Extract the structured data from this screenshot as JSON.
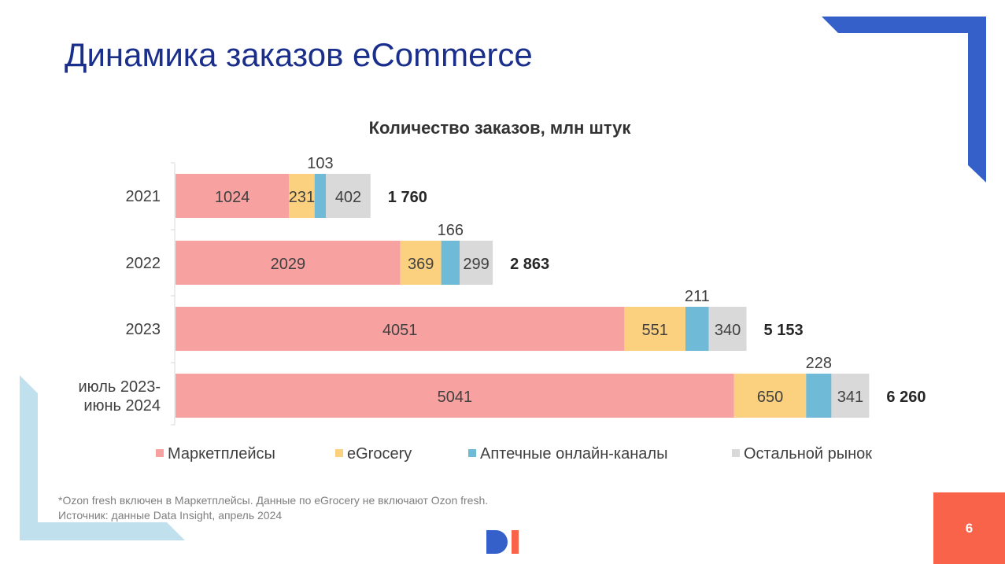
{
  "slide": {
    "title": "Динамика заказов eCommerce",
    "page_number": "6",
    "footnote_line1": "*Ozon fresh включен в Маркетплейсы. Данные по eGrocery не включают Ozon fresh.",
    "footnote_line2": "Источник: данные Data Insight, апрель 2024",
    "logo_text": "DI"
  },
  "colors": {
    "title": "#1a2e8c",
    "corner_accent": "#3560c9",
    "left_accent": "#bfe0ec",
    "page_box": "#f9634a"
  },
  "chart_data": {
    "type": "bar",
    "orientation": "horizontal",
    "stacked": true,
    "title": "Количество заказов, млн штук",
    "categories": [
      [
        "2021"
      ],
      [
        "2022"
      ],
      [
        "2023"
      ],
      [
        "июль 2023-",
        "июнь 2024"
      ]
    ],
    "series": [
      {
        "name": "Маркетплейсы",
        "color": "#f7a1a0",
        "values": [
          1024,
          2029,
          4051,
          5041
        ]
      },
      {
        "name": "eGrocery",
        "color": "#fbd17f",
        "values": [
          231,
          369,
          551,
          650
        ]
      },
      {
        "name": "Аптечные онлайн-каналы",
        "color": "#6fbad6",
        "values": [
          103,
          166,
          211,
          228
        ]
      },
      {
        "name": "Остальной рынок",
        "color": "#d9d9d9",
        "values": [
          402,
          299,
          340,
          341
        ]
      }
    ],
    "totals": [
      "1 760",
      "2 863",
      "5 153",
      "6 260"
    ],
    "legend_position": "bottom",
    "grid": false,
    "xlim": [
      0,
      7000
    ]
  }
}
